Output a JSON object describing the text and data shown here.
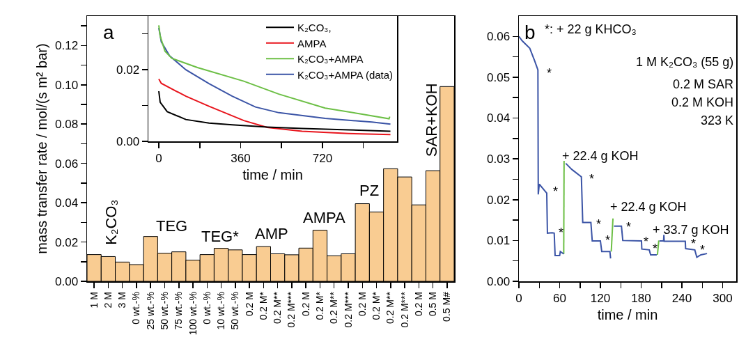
{
  "chart_data": [
    {
      "type": "bar",
      "ylabel": "mass transfer rate / mol/(s m² bar)",
      "categories": [
        "1 M",
        "2 M",
        "3 M",
        "0 wt.-%",
        "25 wt.-%",
        "50 wt.-%",
        "75 wt.-%",
        "100 wt.-%",
        "0 wt.-%",
        "10 wt.-%",
        "50 wt.-%",
        "0.2 M",
        "0.2 M*",
        "0.2 M**",
        "0.2 M***",
        "0.2 M",
        "0.2 M*",
        "0.2 M**",
        "0.2 M***",
        "0.2 M",
        "0.2 M*",
        "0.2 M**",
        "0.2 M***",
        "0.2 M",
        "0.5 M",
        "0.5 M#"
      ],
      "values": [
        0.0136,
        0.0126,
        0.0098,
        0.0085,
        0.0228,
        0.0143,
        0.015,
        0.0108,
        0.0136,
        0.0168,
        0.016,
        0.0136,
        0.0177,
        0.014,
        0.0135,
        0.0169,
        0.026,
        0.013,
        0.014,
        0.0395,
        0.0353,
        0.0573,
        0.0531,
        0.0389,
        0.0563,
        0.0991
      ],
      "color": "#f9cc92",
      "ylim": [
        0,
        0.135
      ],
      "yticks": [
        {
          "value": 0,
          "label": "0.00"
        },
        {
          "value": 0.01,
          "label": null
        },
        {
          "value": 0.02,
          "label": "0.02"
        },
        {
          "value": 0.03,
          "label": null
        },
        {
          "value": 0.04,
          "label": "0.04"
        },
        {
          "value": 0.05,
          "label": null
        },
        {
          "value": 0.06,
          "label": "0.06"
        },
        {
          "value": 0.07,
          "label": null
        },
        {
          "value": 0.08,
          "label": "0.08"
        },
        {
          "value": 0.09,
          "label": null
        },
        {
          "value": 0.1,
          "label": "0.10"
        },
        {
          "value": 0.11,
          "label": null
        },
        {
          "value": 0.12,
          "label": "0.12"
        },
        {
          "value": 0.13,
          "label": null
        }
      ],
      "annotations": [
        "a",
        "K₂CO₃",
        "TEG",
        "TEG*",
        "AMP",
        "AMPA",
        "PZ",
        "SAR+KOH"
      ]
    },
    {
      "type": "line",
      "xlabel": "time / min",
      "legend": "top right",
      "series": [
        {
          "name": "K₂CO₃,",
          "color": "#000000",
          "x": [
            0,
            6,
            37,
            119,
            221,
            323,
            477,
            630,
            835,
            1019
          ],
          "values": [
            0.014,
            0.0109,
            0.0083,
            0.0061,
            0.0051,
            0.0046,
            0.004,
            0.0036,
            0.0032,
            0.0028
          ]
        },
        {
          "name": "AMPA",
          "color": "#e8141c",
          "x": [
            0,
            11,
            119,
            221,
            374,
            477,
            630,
            835,
            1019
          ],
          "values": [
            0.0174,
            0.0162,
            0.0126,
            0.0098,
            0.0058,
            0.0039,
            0.0028,
            0.0022,
            0.0019
          ]
        },
        {
          "name": "K₂CO₃+AMPA",
          "color": "#6cbf45",
          "x": [
            0,
            6,
            27,
            57,
            170,
            374,
            528,
            732,
            886,
            1013,
            1016
          ],
          "values": [
            0.0324,
            0.0294,
            0.0252,
            0.0232,
            0.0206,
            0.0168,
            0.0132,
            0.0093,
            0.0077,
            0.0063,
            0.0069
          ]
        },
        {
          "name": "K₂CO₃+AMPA (data)",
          "color": "#3b54a6",
          "x": [
            0,
            11,
            47,
            119,
            221,
            323,
            425,
            528,
            732,
            937,
            1019
          ],
          "values": [
            0.0317,
            0.0278,
            0.0239,
            0.02,
            0.0161,
            0.0126,
            0.0096,
            0.008,
            0.0064,
            0.0054,
            0.0048
          ]
        }
      ],
      "xlim": [
        -46,
        1048
      ],
      "xticks": [
        0,
        {
          "value": 180,
          "label": null
        },
        360,
        {
          "value": 540,
          "label": null
        },
        720,
        {
          "value": 900,
          "label": null
        }
      ],
      "ylim": [
        0,
        0.035
      ],
      "yticks": [
        {
          "value": 0,
          "label": "0.00"
        },
        {
          "value": 0.01,
          "label": null
        },
        {
          "value": 0.02,
          "label": "0.02"
        },
        {
          "value": 0.03,
          "label": null
        }
      ]
    },
    {
      "type": "line",
      "xlabel": "time / min",
      "series": [
        {
          "color": "#3b54a6",
          "x": [
            0,
            5,
            16,
            23,
            28,
            28.5,
            30,
            38,
            41,
            42,
            49,
            52,
            53.3,
            60,
            61,
            66,
            67,
            69,
            78,
            92,
            94,
            106,
            108,
            120,
            122,
            134,
            135,
            137,
            140,
            151,
            153,
            180.5,
            181,
            192,
            194,
            203,
            205,
            207,
            213,
            213.5,
            214,
            245,
            245.5,
            259,
            262,
            268,
            277
          ],
          "values": [
            0.06,
            0.0589,
            0.0571,
            0.0541,
            0.0518,
            0.0213,
            0.0238,
            0.0222,
            0.0216,
            0.0118,
            0.0119,
            0.0118,
            0.0063,
            0.0063,
            0.0073,
            0.0067,
            null,
            0.0289,
            0.0274,
            0.0256,
            0.0144,
            0.0144,
            0.0099,
            0.0099,
            0.0073,
            0.0073,
            0.0056,
            null,
            0.0135,
            0.0135,
            0.01,
            0.0099,
            0.0079,
            0.0077,
            0.0065,
            0.0065,
            null,
            0.0099,
            0.0099,
            0.0114,
            0.0098,
            0.0098,
            0.008,
            0.0077,
            0.0059,
            0.0065,
            0.0068
          ]
        },
        {
          "color": "#6cbf45",
          "x": [
            66,
            66.5,
            100,
            136,
            138.5,
            170,
            204,
            206
          ],
          "values": [
            0.0067,
            0.0295,
            null,
            0.0073,
            0.0154,
            null,
            0.0065,
            0.01
          ]
        }
      ],
      "xlim": [
        0,
        320
      ],
      "xticks": [
        0,
        {
          "value": 30,
          "label": null
        },
        60,
        {
          "value": 90,
          "label": null
        },
        120,
        {
          "value": 150,
          "label": null
        },
        180,
        {
          "value": 210,
          "label": null
        },
        240,
        {
          "value": 270,
          "label": null
        },
        300
      ],
      "ylim": [
        0,
        0.065
      ],
      "yticks": [
        {
          "value": 0,
          "label": "0.00"
        },
        {
          "value": 0.005,
          "label": null
        },
        {
          "value": 0.01,
          "label": "0.01"
        },
        {
          "value": 0.015,
          "label": null
        },
        {
          "value": 0.02,
          "label": "0.02"
        },
        {
          "value": 0.025,
          "label": null
        },
        {
          "value": 0.03,
          "label": "0.03"
        },
        {
          "value": 0.035,
          "label": null
        },
        {
          "value": 0.04,
          "label": "0.04"
        },
        {
          "value": 0.045,
          "label": null
        },
        {
          "value": 0.05,
          "label": "0.05"
        },
        {
          "value": 0.055,
          "label": null
        },
        {
          "value": 0.06,
          "label": "0.06"
        }
      ],
      "annotations": [
        "b",
        "*: + 22 g KHCO₃",
        "1 M K₂CO₃ (55 g)",
        "0.2 M SAR",
        "0.2 M KOH",
        "323 K",
        "+ 22.4 g KOH",
        "+ 22.4 g KOH",
        "+ 33.7 g KOH",
        "*",
        "*",
        "*",
        "*",
        "*",
        "*",
        "*",
        "*",
        "*",
        "*",
        "*"
      ]
    }
  ]
}
